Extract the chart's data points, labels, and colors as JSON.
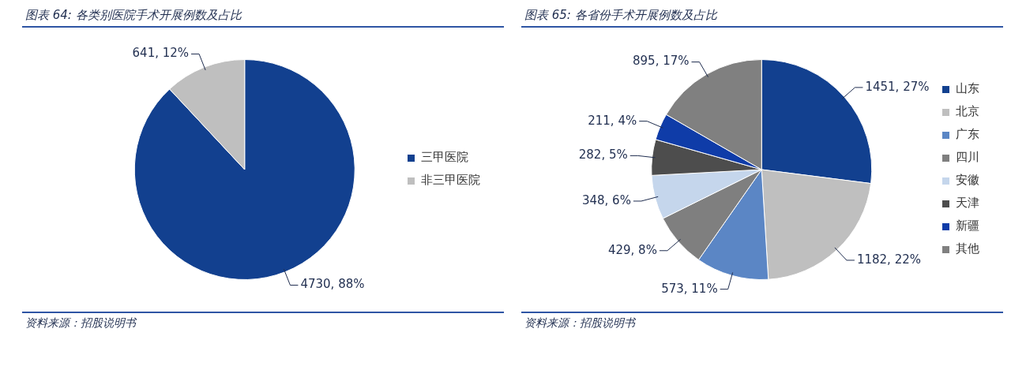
{
  "chart_data": [
    {
      "type": "pie",
      "title": "图表 64:  各类别医院手术开展例数及占比",
      "categories": [
        "三甲医院",
        "非三甲医院"
      ],
      "values": [
        4730,
        641
      ],
      "colors": [
        "#12408f",
        "#bfbfbf"
      ],
      "value_labels": [
        "4730, 88%",
        "641, 12%"
      ],
      "legend": "right",
      "annotations": [
        "资料来源：招股说明书"
      ]
    },
    {
      "type": "pie",
      "title": "图表 65:  各省份手术开展例数及占比",
      "categories": [
        "山东",
        "北京",
        "广东",
        "四川",
        "安徽",
        "天津",
        "新疆",
        "其他"
      ],
      "values": [
        1451,
        1182,
        573,
        429,
        348,
        282,
        211,
        895
      ],
      "colors": [
        "#12408f",
        "#bfbfbf",
        "#5b86c5",
        "#7f7f7f",
        "#c5d6ec",
        "#4d4d4d",
        "#0f3ca8",
        "#808080"
      ],
      "value_labels": [
        "1451, 27%",
        "1182, 22%",
        "573, 11%",
        "429, 8%",
        "348, 6%",
        "282, 5%",
        "211, 4%",
        "895, 17%"
      ],
      "legend": "right",
      "annotations": [
        "资料来源：招股说明书"
      ]
    }
  ]
}
